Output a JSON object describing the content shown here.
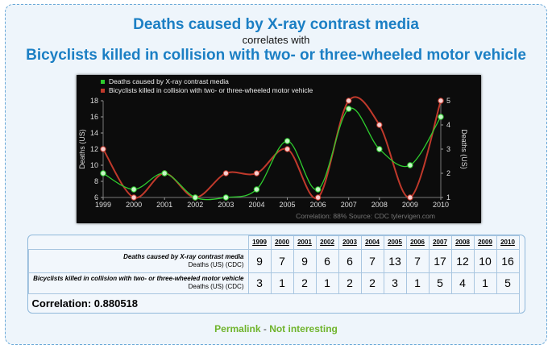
{
  "header": {
    "title1": "Deaths caused by X-ray contrast media",
    "correlates": "correlates with",
    "title2": "Bicyclists killed in collision with two- or three-wheeled motor vehicle"
  },
  "chart_data": {
    "type": "line",
    "x": [
      "1999",
      "2000",
      "2001",
      "2002",
      "2003",
      "2004",
      "2005",
      "2006",
      "2007",
      "2008",
      "2009",
      "2010"
    ],
    "series": [
      {
        "name": "Deaths caused by X-ray contrast media",
        "axis": "left",
        "color": "#2ecc2e",
        "values": [
          9,
          7,
          9,
          6,
          6,
          7,
          13,
          7,
          17,
          12,
          10,
          16
        ]
      },
      {
        "name": "Bicyclists killed in collision with two- or three-wheeled motor vehicle",
        "axis": "right",
        "color": "#c0392b",
        "values": [
          3,
          1,
          2,
          1,
          2,
          2,
          3,
          1,
          5,
          4,
          1,
          5
        ]
      }
    ],
    "ylabel_left": "Deaths (US)",
    "ylabel_right": "Deaths (US)",
    "ylim_left": [
      6,
      18
    ],
    "yticks_left": [
      "6",
      "8",
      "10",
      "12",
      "14",
      "16",
      "18"
    ],
    "ylim_right": [
      1,
      5
    ],
    "yticks_right": [
      "1",
      "2",
      "3",
      "4",
      "5"
    ],
    "footer": "Correlation: 88%     Source: CDC     tylervigen.com",
    "legend": "top-left",
    "grid": false
  },
  "table": {
    "years": [
      "1999",
      "2000",
      "2001",
      "2002",
      "2003",
      "2004",
      "2005",
      "2006",
      "2007",
      "2008",
      "2009",
      "2010"
    ],
    "rows": [
      {
        "label": "Deaths caused by X-ray contrast media",
        "sub": "Deaths (US) (CDC)",
        "values": [
          "9",
          "7",
          "9",
          "6",
          "6",
          "7",
          "13",
          "7",
          "17",
          "12",
          "10",
          "16"
        ]
      },
      {
        "label": "Bicyclists killed in collision with two- or three-wheeled motor vehicle",
        "sub": "Deaths (US) (CDC)",
        "values": [
          "3",
          "1",
          "2",
          "1",
          "2",
          "2",
          "3",
          "1",
          "5",
          "4",
          "1",
          "5"
        ]
      }
    ],
    "correlation": "Correlation: 0.880518"
  },
  "links": {
    "permalink": "Permalink",
    "separator": " - ",
    "not_interesting": "Not interesting"
  }
}
